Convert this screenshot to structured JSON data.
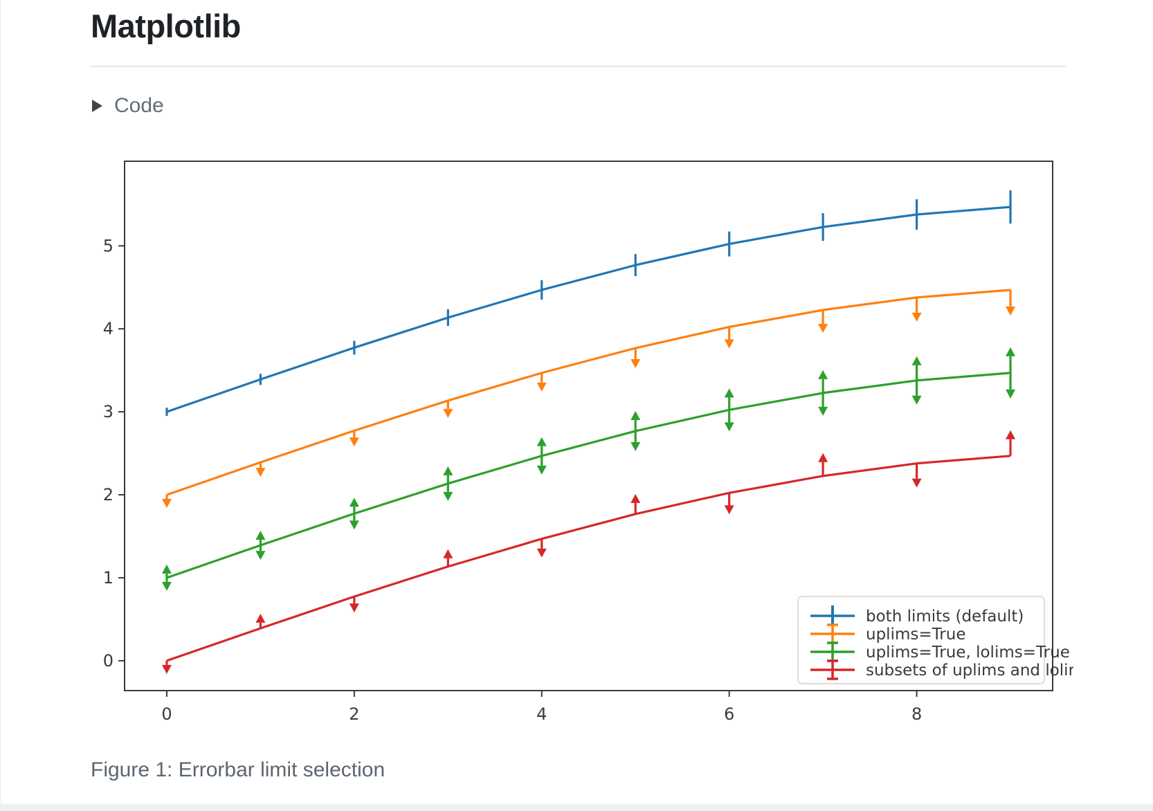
{
  "page": {
    "title": "Matplotlib",
    "code_toggle_label": "Code",
    "caption": "Figure 1: Errorbar limit selection"
  },
  "colors": {
    "title_text": "#1f2328",
    "toggle_text": "#646c76",
    "toggle_triangle": "#3d444c",
    "caption_text": "#5b6570",
    "spine": "#3a3a3a",
    "tick_label": "#3a3a3a",
    "legend_border": "#d2d2d2",
    "legend_text": "#3a3a3a"
  },
  "chart_data": {
    "type": "line",
    "title": "",
    "xlabel": "",
    "ylabel": "",
    "x": [
      0,
      1,
      2,
      3,
      4,
      5,
      6,
      7,
      8,
      9
    ],
    "yerr": [
      0.05,
      0.067,
      0.083,
      0.1,
      0.117,
      0.133,
      0.15,
      0.167,
      0.183,
      0.2
    ],
    "series": [
      {
        "name": "both limits (default)",
        "color": "#1f77b4",
        "error_style": "bar",
        "values": [
          3.0,
          3.391,
          3.773,
          4.135,
          4.469,
          4.768,
          5.023,
          5.227,
          5.378,
          5.469
        ]
      },
      {
        "name": "uplims=True",
        "color": "#ff7f0e",
        "error_style": "arrow_down",
        "values": [
          2.0,
          2.391,
          2.773,
          3.135,
          3.469,
          3.768,
          4.023,
          4.227,
          4.378,
          4.469
        ]
      },
      {
        "name": "uplims=True, lolims=True",
        "color": "#2ca02c",
        "error_style": "arrow_updown",
        "values": [
          1.0,
          1.391,
          1.773,
          2.135,
          2.469,
          2.768,
          3.023,
          3.227,
          3.378,
          3.469
        ]
      },
      {
        "name": "subsets of uplims and lolims",
        "color": "#d62728",
        "error_style": "alternating",
        "arrow_dirs": [
          "down",
          "up",
          "down",
          "up",
          "down",
          "up",
          "down",
          "up",
          "down",
          "up"
        ],
        "values": [
          0.0,
          0.391,
          0.773,
          1.135,
          1.469,
          1.768,
          2.023,
          2.227,
          2.378,
          2.469
        ]
      }
    ],
    "xticks": [
      0,
      2,
      4,
      6,
      8
    ],
    "yticks": [
      0,
      1,
      2,
      3,
      4,
      5
    ],
    "xlim": [
      -0.45,
      9.45
    ],
    "ylim": [
      -0.36,
      6.02
    ],
    "grid": false,
    "legend_position": "lower right"
  }
}
